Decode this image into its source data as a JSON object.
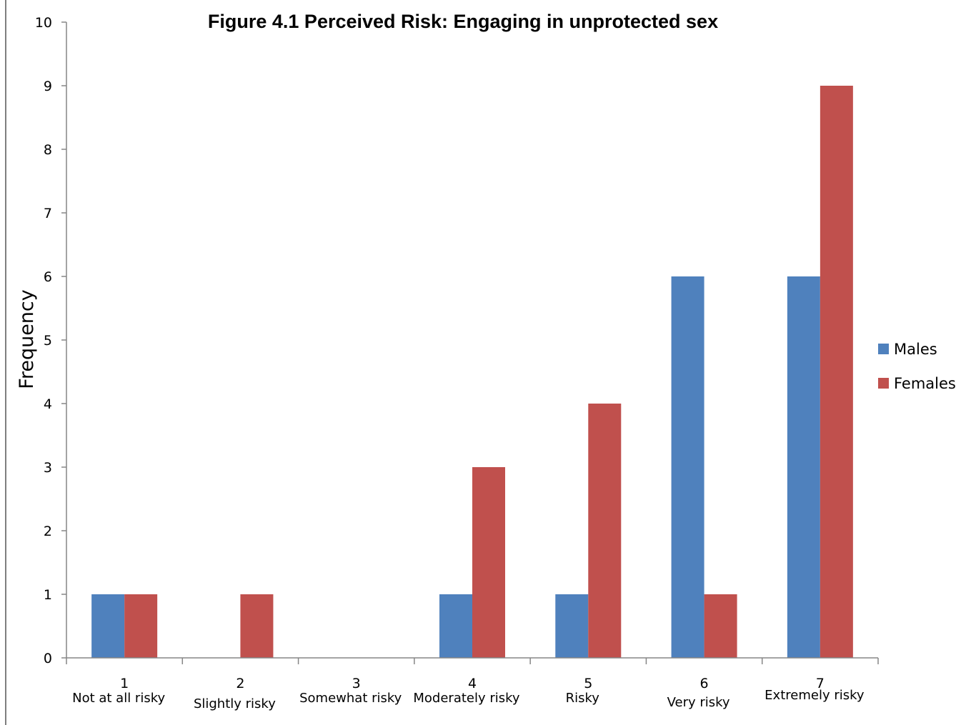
{
  "chart_data": {
    "type": "bar",
    "title": "Figure  4.1 Perceived Risk: Engaging in unprotected sex",
    "xlabel": "",
    "ylabel": "Frequency",
    "ylim": [
      0,
      10
    ],
    "yticks": [
      "0",
      "1",
      "2",
      "3",
      "4",
      "5",
      "6",
      "7",
      "8",
      "9",
      "10"
    ],
    "categories": [
      "1",
      "2",
      "3",
      "4",
      "5",
      "6",
      "7"
    ],
    "category_labels": [
      "Not at all risky",
      "Slightly risky",
      "Somewhat risky",
      "Moderately risky",
      "Risky",
      "Very risky",
      "Extremely risky"
    ],
    "series": [
      {
        "name": "Males",
        "color": "#4f81bd",
        "values": [
          1,
          0,
          0,
          1,
          1,
          6,
          6
        ]
      },
      {
        "name": "Females",
        "color": "#c0504d",
        "values": [
          1,
          1,
          0,
          3,
          4,
          1,
          9
        ]
      }
    ],
    "legend": "right",
    "grid": false
  }
}
